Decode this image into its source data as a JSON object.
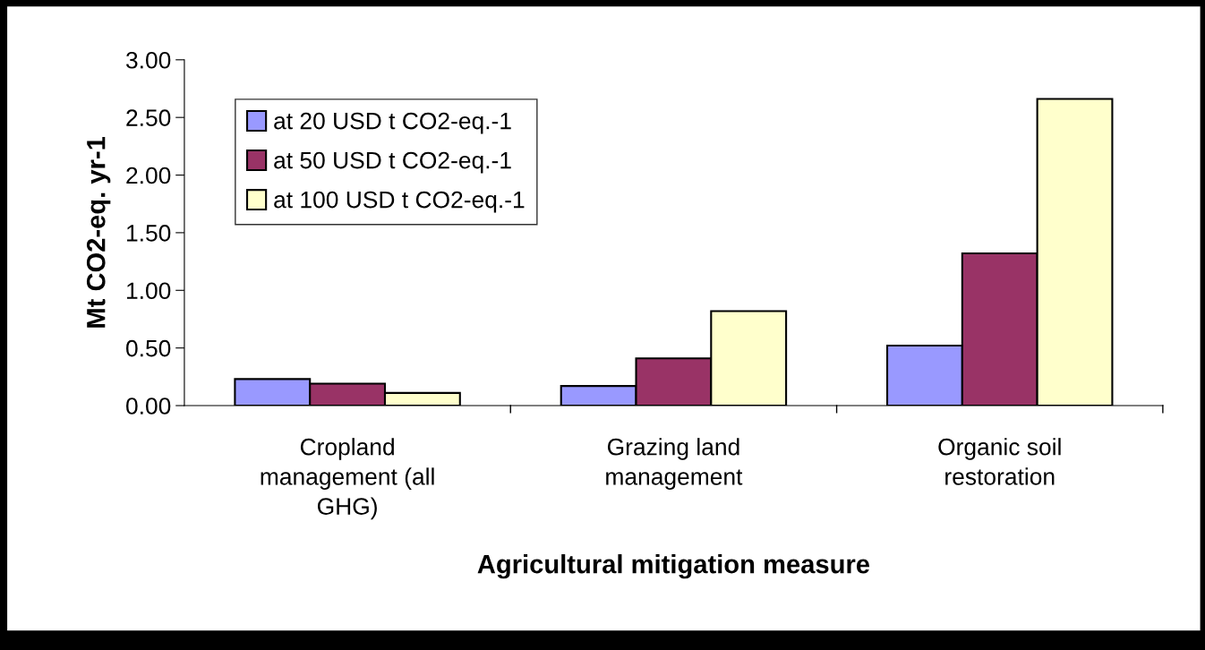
{
  "chart_data": {
    "type": "bar",
    "xlabel": "Agricultural mitigation measure",
    "ylabel": "Mt CO2-eq. yr-1",
    "categories": [
      "Cropland\nmanagement (all\nGHG)",
      "Grazing land\nmanagement",
      "Organic soil\nrestoration"
    ],
    "series": [
      {
        "name": "at 20 USD t CO2-eq.-1",
        "color": "#9999ff",
        "values": [
          0.23,
          0.17,
          0.52
        ]
      },
      {
        "name": "at 50 USD t CO2-eq.-1",
        "color": "#993366",
        "values": [
          0.19,
          0.41,
          1.32
        ]
      },
      {
        "name": "at 100 USD t CO2-eq.-1",
        "color": "#ffffcc",
        "values": [
          0.11,
          0.82,
          2.66
        ]
      }
    ],
    "ylim": [
      0,
      3
    ],
    "yticks": [
      {
        "value": 0,
        "label": "0.00"
      },
      {
        "value": 0.5,
        "label": "0.50"
      },
      {
        "value": 1,
        "label": "1.00"
      },
      {
        "value": 1.5,
        "label": "1.50"
      },
      {
        "value": 2,
        "label": "2.00"
      },
      {
        "value": 2.5,
        "label": "2.50"
      },
      {
        "value": 3,
        "label": "3.00"
      }
    ],
    "grid": false,
    "legend": "top left"
  }
}
